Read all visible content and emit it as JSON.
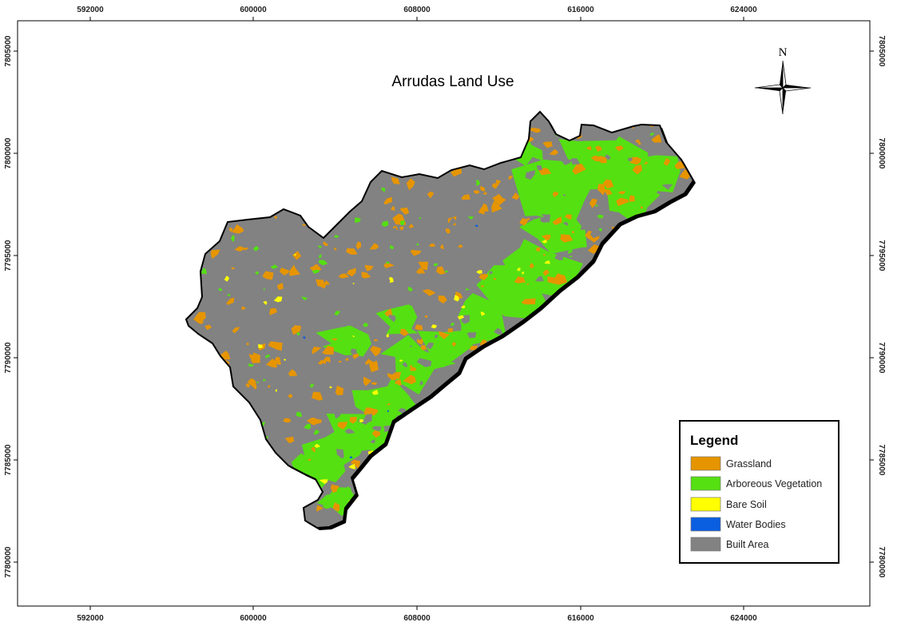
{
  "map": {
    "title": "Arrudas Land Use",
    "north_label": "N",
    "easting_ticks": [
      "592000",
      "600000",
      "608000",
      "616000",
      "624000"
    ],
    "northing_ticks": [
      "7805000",
      "7800000",
      "7795000",
      "7790000",
      "7785000",
      "7780000"
    ],
    "classes": [
      {
        "label": "Grassland",
        "color": "#E69500",
        "icon": "grassland-swatch"
      },
      {
        "label": "Arboreous Vegetation",
        "color": "#55E012",
        "icon": "vegetation-swatch"
      },
      {
        "label": "Bare Soil",
        "color": "#FFFF00",
        "icon": "bare-soil-swatch"
      },
      {
        "label": "Water Bodies",
        "color": "#0A5EE0",
        "icon": "water-swatch"
      },
      {
        "label": "Built Area",
        "color": "#828282",
        "icon": "built-area-swatch"
      }
    ]
  },
  "legend": {
    "title": "Legend"
  }
}
